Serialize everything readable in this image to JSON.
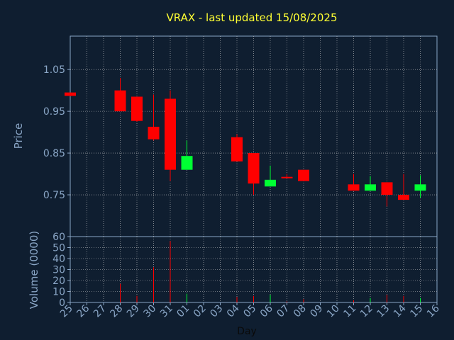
{
  "chart_data": {
    "type": "candlestick",
    "title": "VRAX - last updated 15/08/2025",
    "colors": {
      "background": "#0f1e30",
      "axes": "#8aa6c6",
      "grid": "#c8c8c8",
      "up": "#00ff33",
      "down": "#ff0000",
      "title": "#ffff33"
    },
    "price_panel": {
      "ylabel": "Price",
      "ylim": [
        0.65,
        1.13
      ],
      "yticks": [
        "1.05",
        "0.95",
        "0.85",
        "0.75"
      ],
      "ytick_values": [
        1.05,
        0.95,
        0.85,
        0.75
      ],
      "grid": true
    },
    "volume_panel": {
      "ylabel": "Volume (0000)",
      "ylim": [
        0,
        60
      ],
      "yticks": [
        "60",
        "50",
        "40",
        "30",
        "20",
        "10",
        "0"
      ],
      "ytick_values": [
        60,
        50,
        40,
        30,
        20,
        10,
        0
      ],
      "grid": true
    },
    "xlabel": "Day",
    "x_ticks": [
      "25",
      "26",
      "27",
      "28",
      "29",
      "30",
      "31",
      "01",
      "02",
      "03",
      "04",
      "05",
      "06",
      "07",
      "08",
      "09",
      "10",
      "11",
      "12",
      "13",
      "14",
      "15",
      "16"
    ],
    "candles": [
      {
        "day": "25",
        "open": 0.995,
        "high": 0.995,
        "low": 0.986,
        "close": 0.987,
        "volume": 0
      },
      {
        "day": "28",
        "open": 1.0,
        "high": 1.03,
        "low": 0.95,
        "close": 0.95,
        "volume": 17
      },
      {
        "day": "29",
        "open": 0.985,
        "high": 0.985,
        "low": 0.925,
        "close": 0.927,
        "volume": 6
      },
      {
        "day": "30",
        "open": 0.913,
        "high": 0.99,
        "low": 0.88,
        "close": 0.883,
        "volume": 32
      },
      {
        "day": "31",
        "open": 0.98,
        "high": 1.0,
        "low": 0.783,
        "close": 0.81,
        "volume": 56
      },
      {
        "day": "01",
        "open": 0.81,
        "high": 0.88,
        "low": 0.81,
        "close": 0.843,
        "volume": 8
      },
      {
        "day": "04",
        "open": 0.888,
        "high": 0.895,
        "low": 0.83,
        "close": 0.83,
        "volume": 5
      },
      {
        "day": "05",
        "open": 0.85,
        "high": 0.85,
        "low": 0.75,
        "close": 0.777,
        "volume": 6
      },
      {
        "day": "06",
        "open": 0.77,
        "high": 0.82,
        "low": 0.77,
        "close": 0.786,
        "volume": 7
      },
      {
        "day": "07",
        "open": 0.793,
        "high": 0.8,
        "low": 0.79,
        "close": 0.79,
        "volume": 1
      },
      {
        "day": "08",
        "open": 0.81,
        "high": 0.81,
        "low": 0.783,
        "close": 0.783,
        "volume": 3
      },
      {
        "day": "11",
        "open": 0.775,
        "high": 0.8,
        "low": 0.76,
        "close": 0.76,
        "volume": 2
      },
      {
        "day": "12",
        "open": 0.76,
        "high": 0.795,
        "low": 0.76,
        "close": 0.775,
        "volume": 4
      },
      {
        "day": "13",
        "open": 0.78,
        "high": 0.78,
        "low": 0.722,
        "close": 0.75,
        "volume": 7
      },
      {
        "day": "14",
        "open": 0.75,
        "high": 0.8,
        "low": 0.738,
        "close": 0.738,
        "volume": 6
      },
      {
        "day": "15",
        "open": 0.76,
        "high": 0.797,
        "low": 0.743,
        "close": 0.775,
        "volume": 4
      }
    ]
  }
}
